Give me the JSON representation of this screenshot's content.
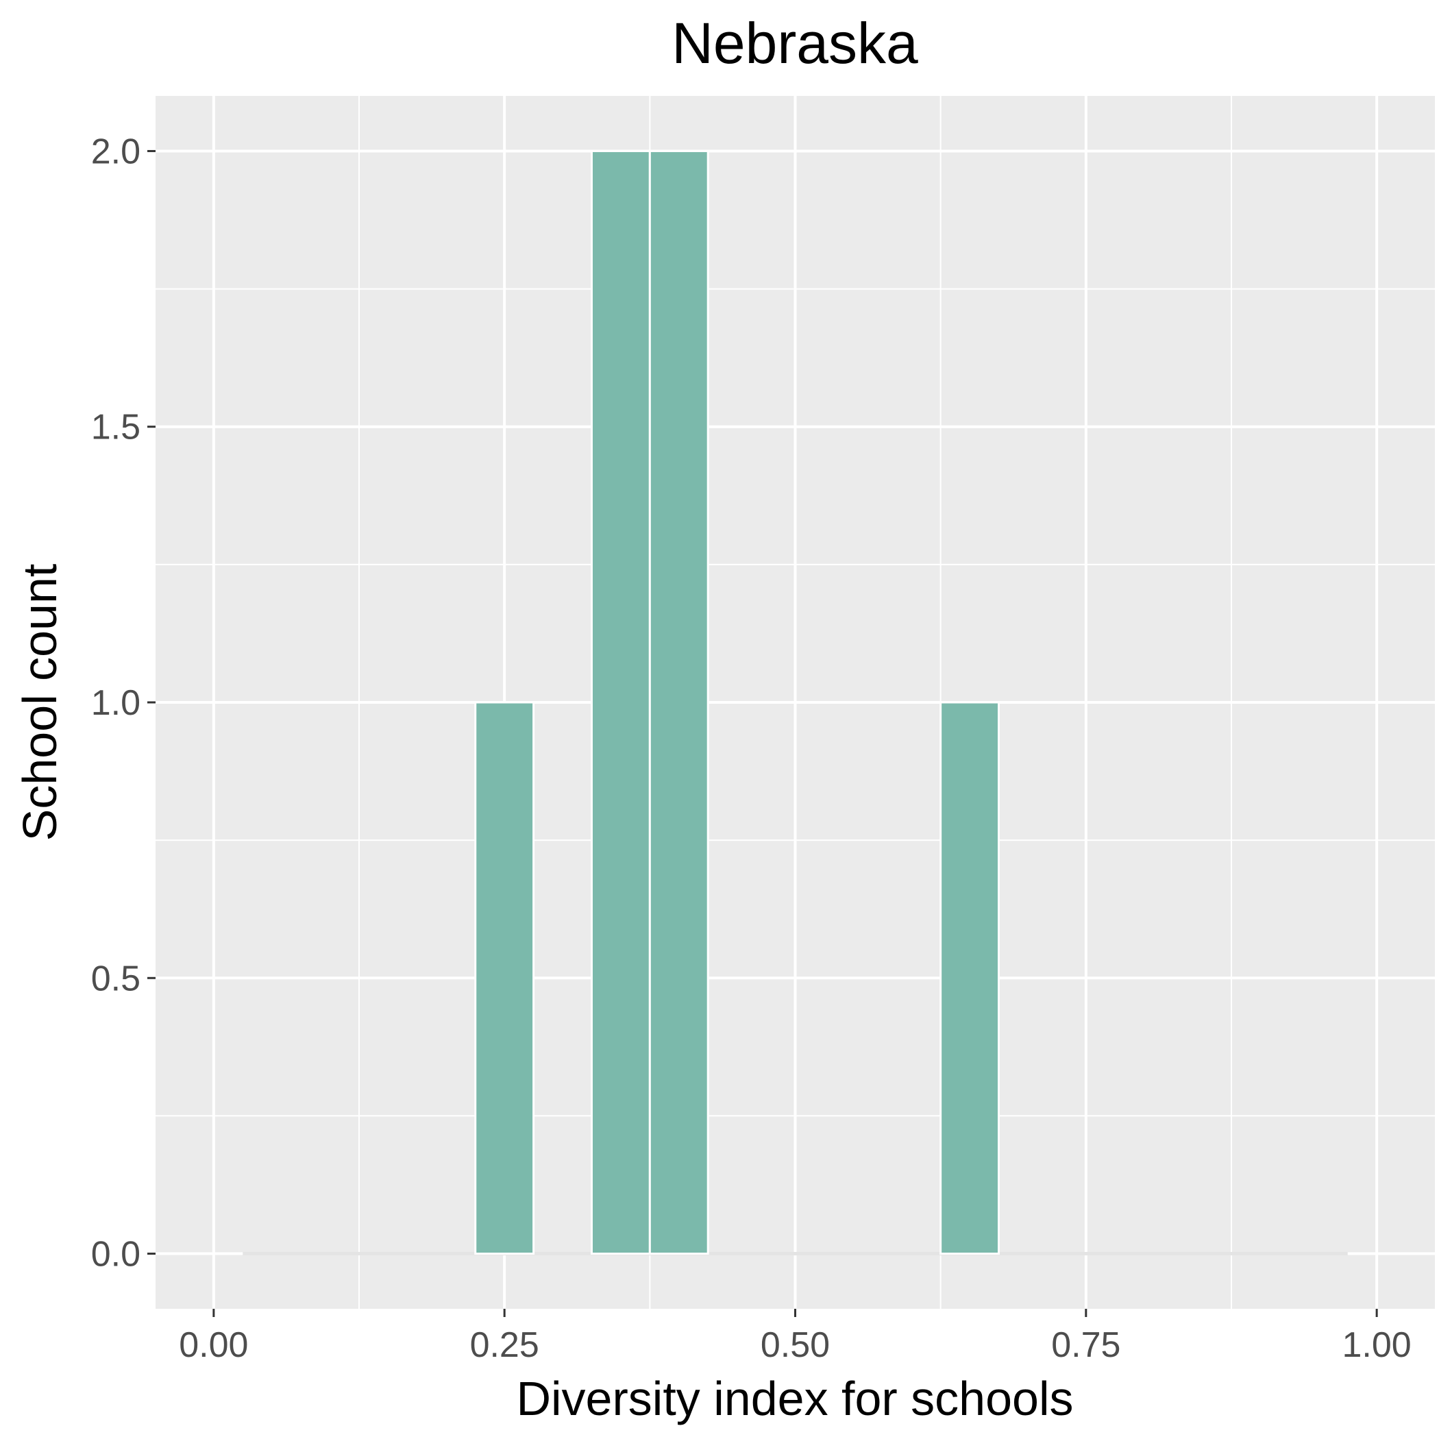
{
  "chart_data": {
    "type": "bar",
    "title": "Nebraska",
    "xlabel": "Diversity index for schools",
    "ylabel": "School count",
    "xlim": [
      -0.05,
      1.05
    ],
    "ylim": [
      -0.1,
      2.1
    ],
    "x_ticks": [
      0.0,
      0.25,
      0.5,
      0.75,
      1.0
    ],
    "x_tick_labels": [
      "0.00",
      "0.25",
      "0.50",
      "0.75",
      "1.00"
    ],
    "y_ticks": [
      0.0,
      0.5,
      1.0,
      1.5,
      2.0
    ],
    "y_tick_labels": [
      "0.0",
      "0.5",
      "1.0",
      "1.5",
      "2.0"
    ],
    "bin_width": 0.05,
    "bins": [
      {
        "start": 0.225,
        "end": 0.275,
        "count": 1
      },
      {
        "start": 0.325,
        "end": 0.375,
        "count": 2
      },
      {
        "start": 0.375,
        "end": 0.425,
        "count": 2
      },
      {
        "start": 0.625,
        "end": 0.675,
        "count": 1
      }
    ],
    "baseline_range": [
      0.025,
      0.975
    ],
    "grid": true,
    "legend": "none",
    "colors": {
      "bar_fill": "#7bb9ab",
      "panel_background": "#ebebeb",
      "grid_line": "#ffffff",
      "tick_label": "#4d4d4d"
    }
  }
}
